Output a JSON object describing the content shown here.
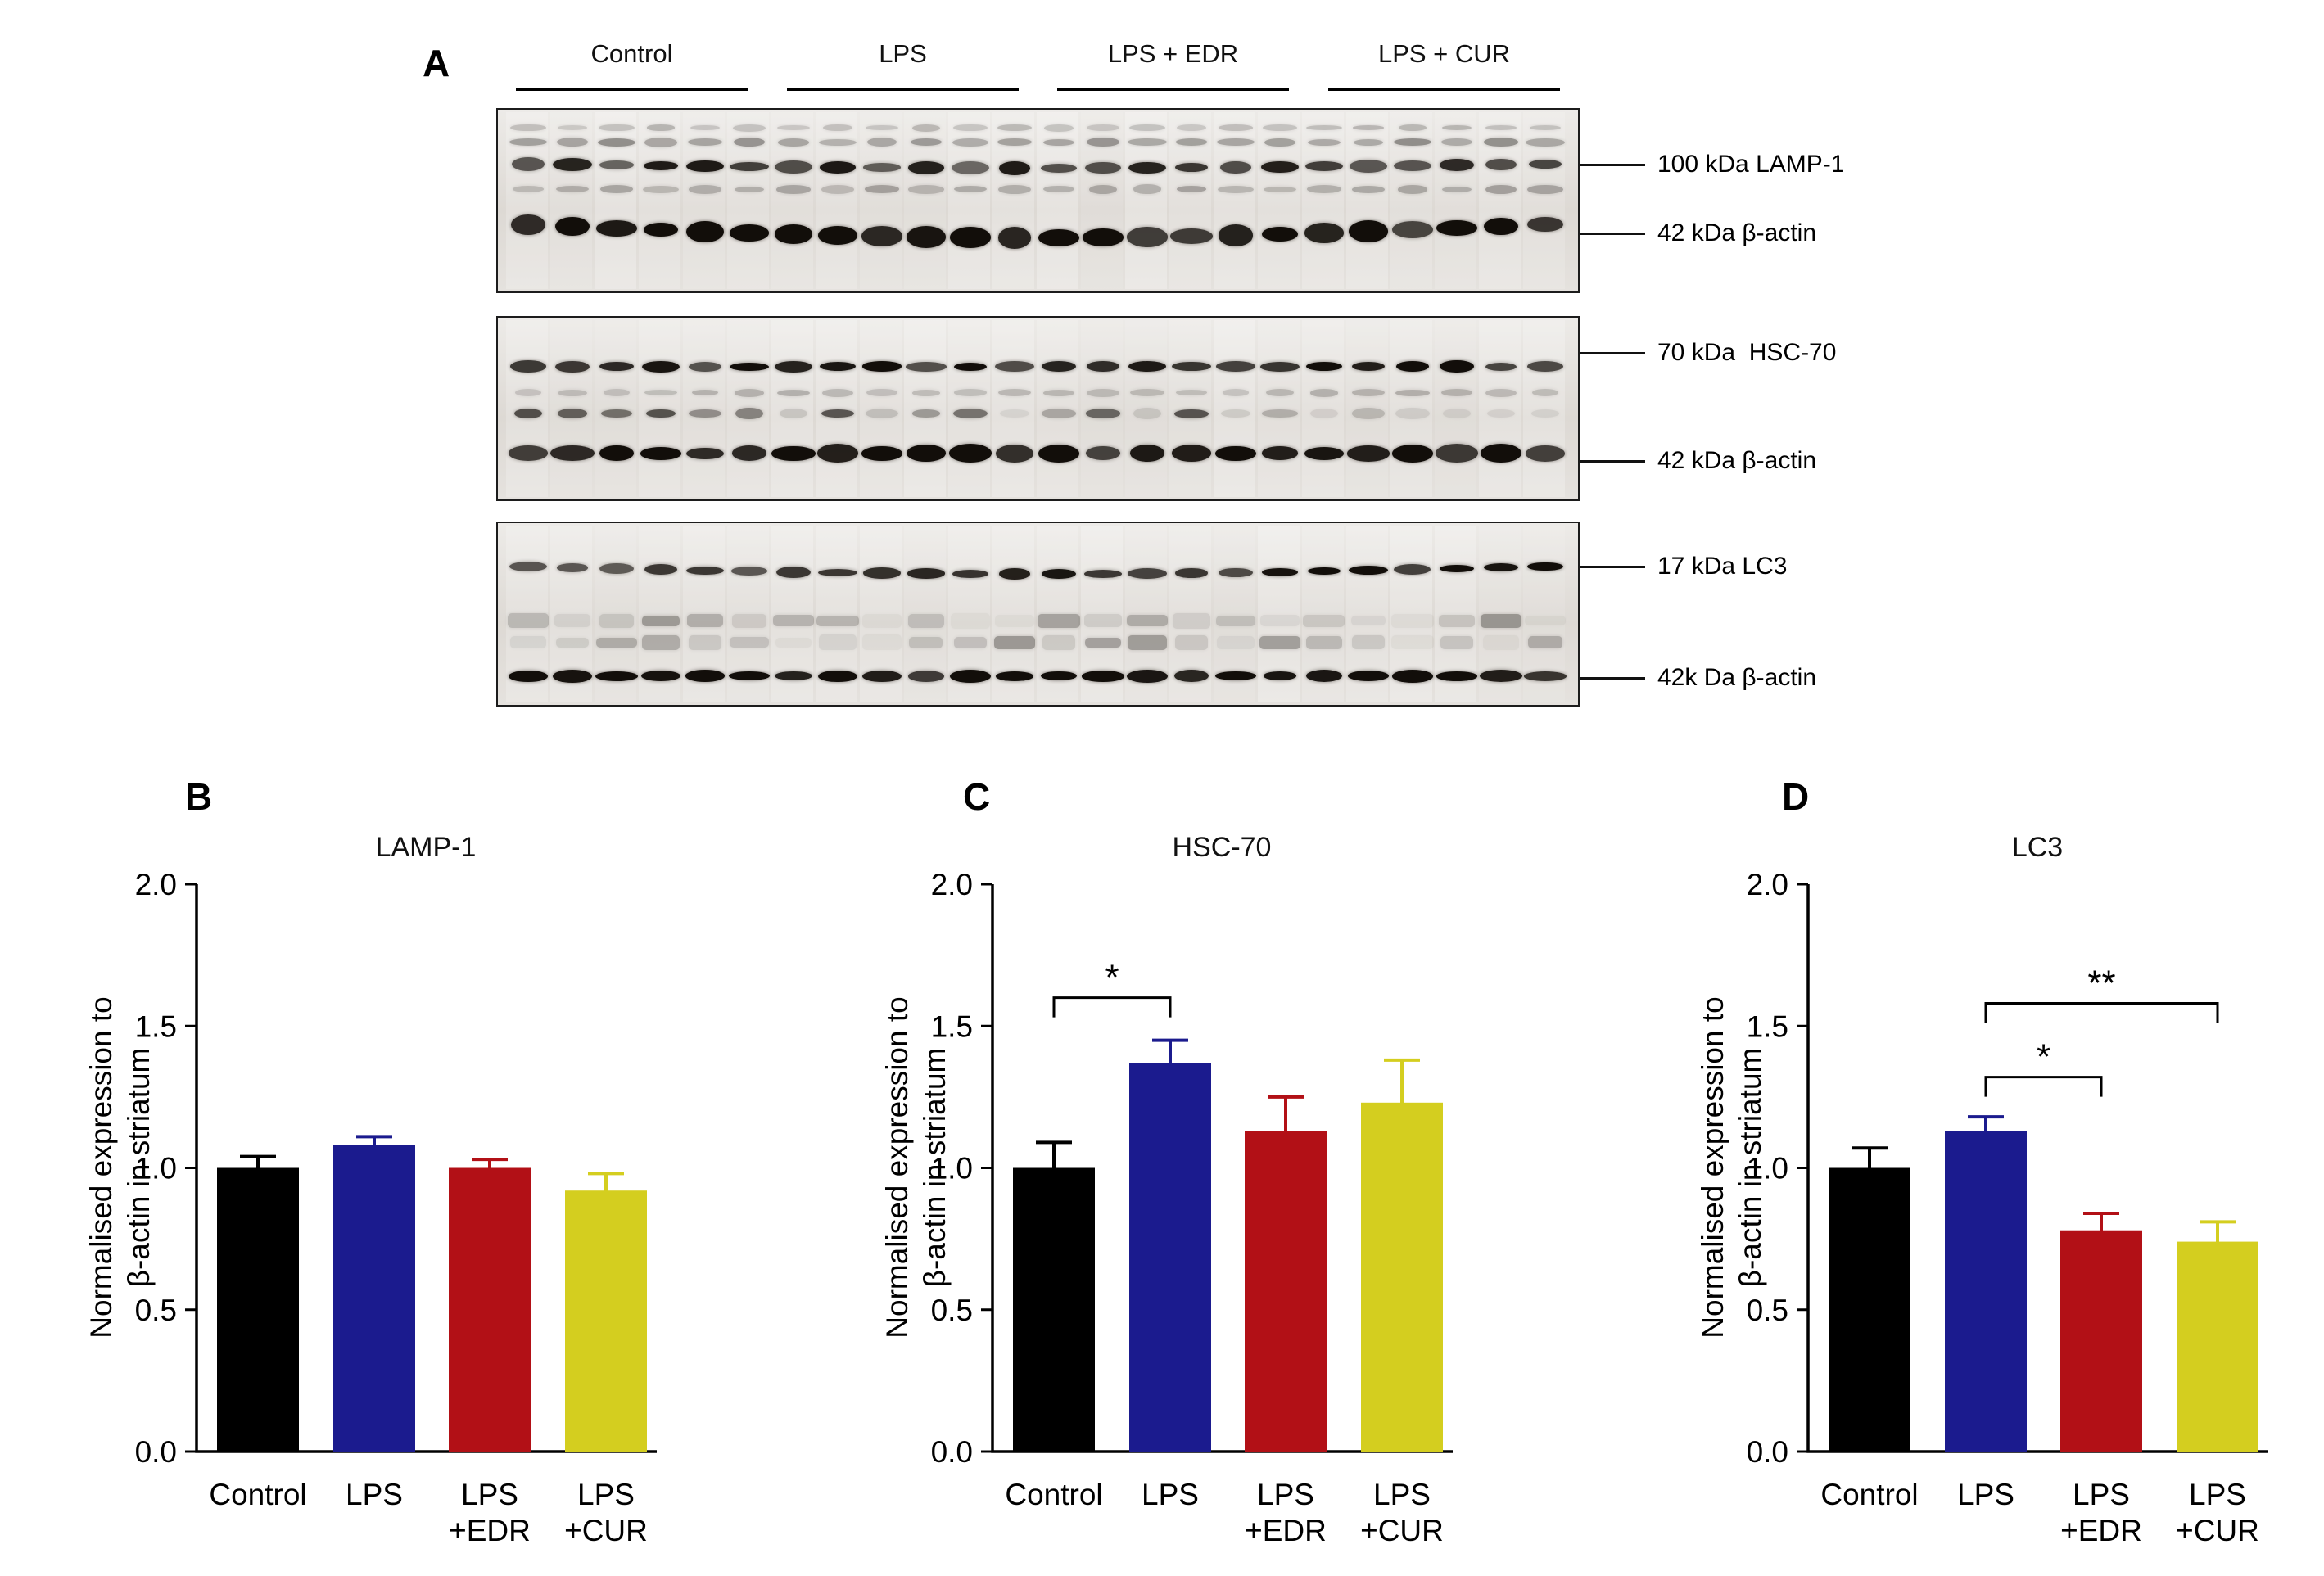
{
  "figure": {
    "panel_a": {
      "letter": "A",
      "groups": [
        "Control",
        "LPS",
        "LPS + EDR",
        "LPS + CUR"
      ],
      "blots": [
        {
          "name": "LAMP-1 blot",
          "labels": [
            {
              "text": "100 kDa LAMP-1"
            },
            {
              "text": "42 kDa β-actin"
            }
          ]
        },
        {
          "name": "HSC-70 blot",
          "labels": [
            {
              "text": "70 kDa  HSC-70"
            },
            {
              "text": "42 kDa β-actin"
            }
          ]
        },
        {
          "name": "LC3 blot",
          "labels": [
            {
              "text": "17 kDa LC3"
            },
            {
              "text": "42k Da β-actin"
            }
          ]
        }
      ]
    }
  },
  "chart_data": [
    {
      "type": "bar",
      "panel_letter": "B",
      "title": "LAMP-1",
      "ylabel_lines": [
        "Normalised expression to",
        "β-actin in striatum"
      ],
      "xlabel": "",
      "ylim": [
        0,
        2.0
      ],
      "yticks": [
        0,
        0.5,
        1.0,
        1.5,
        2.0
      ],
      "categories": [
        [
          "Control"
        ],
        [
          "LPS"
        ],
        [
          "LPS",
          "+EDR"
        ],
        [
          "LPS",
          "+CUR"
        ]
      ],
      "values": [
        1.0,
        1.08,
        1.0,
        0.92
      ],
      "errors": [
        0.04,
        0.03,
        0.03,
        0.06
      ],
      "bar_colors": [
        "#000000",
        "#1b1b8e",
        "#b21016",
        "#d4ce1f"
      ],
      "significance": []
    },
    {
      "type": "bar",
      "panel_letter": "C",
      "title": "HSC-70",
      "ylabel_lines": [
        "Normalised expression to",
        "β-actin in striatum"
      ],
      "xlabel": "",
      "ylim": [
        0,
        2.0
      ],
      "yticks": [
        0,
        0.5,
        1.0,
        1.5,
        2.0
      ],
      "categories": [
        [
          "Control"
        ],
        [
          "LPS"
        ],
        [
          "LPS",
          "+EDR"
        ],
        [
          "LPS",
          "+CUR"
        ]
      ],
      "values": [
        1.0,
        1.37,
        1.13,
        1.23
      ],
      "errors": [
        0.09,
        0.08,
        0.12,
        0.15
      ],
      "bar_colors": [
        "#000000",
        "#1b1b8e",
        "#b21016",
        "#d4ce1f"
      ],
      "significance": [
        {
          "from": 0,
          "to": 1,
          "label": "*",
          "height": 1.6
        }
      ]
    },
    {
      "type": "bar",
      "panel_letter": "D",
      "title": "LC3",
      "ylabel_lines": [
        "Normalised expression to",
        "β-actin in striatum"
      ],
      "xlabel": "",
      "ylim": [
        0,
        2.0
      ],
      "yticks": [
        0,
        0.5,
        1.0,
        1.5,
        2.0
      ],
      "categories": [
        [
          "Control"
        ],
        [
          "LPS"
        ],
        [
          "LPS",
          "+EDR"
        ],
        [
          "LPS",
          "+CUR"
        ]
      ],
      "values": [
        1.0,
        1.13,
        0.78,
        0.74
      ],
      "errors": [
        0.07,
        0.05,
        0.06,
        0.07
      ],
      "bar_colors": [
        "#000000",
        "#1b1b8e",
        "#b21016",
        "#d4ce1f"
      ],
      "significance": [
        {
          "from": 1,
          "to": 2,
          "label": "*",
          "height": 1.32
        },
        {
          "from": 1,
          "to": 3,
          "label": "**",
          "height": 1.58
        }
      ]
    }
  ]
}
